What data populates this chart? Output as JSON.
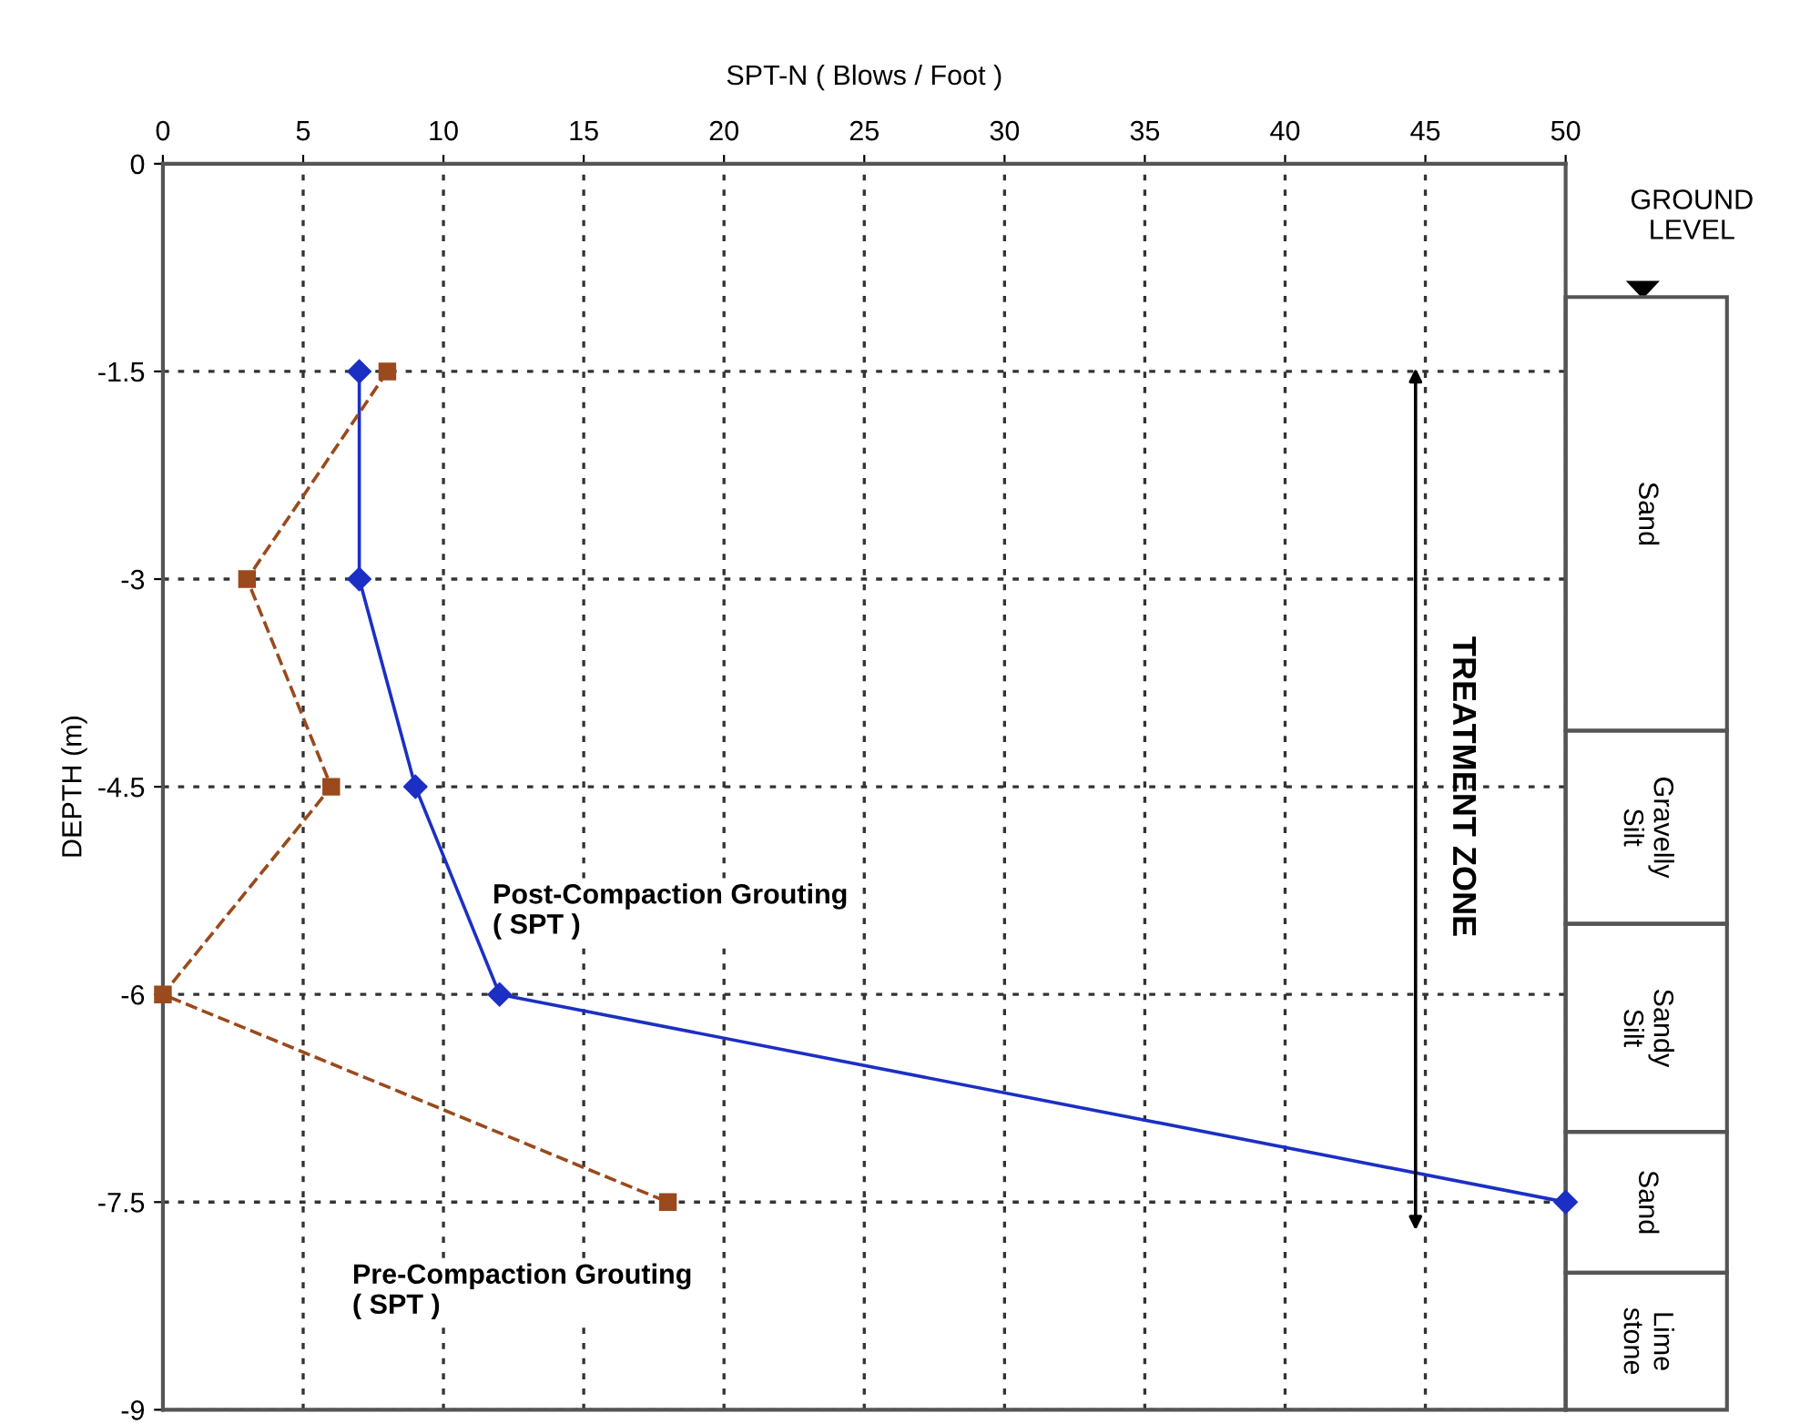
{
  "chart_data": {
    "type": "line",
    "xlabel": "SPT-N ( Blows / Foot )",
    "ylabel": "DEPTH (m)",
    "xlim": [
      0,
      50
    ],
    "xticks": [
      0,
      5,
      10,
      15,
      20,
      25,
      30,
      35,
      40,
      45,
      50
    ],
    "ylim": [
      -9,
      0
    ],
    "yticks": [
      0,
      -1.5,
      -3,
      -4.5,
      -6,
      -7.5,
      -9
    ],
    "grid": true,
    "series": [
      {
        "name": "Post-Compaction Grouting\n( SPT )",
        "color": "#1c2fc4",
        "marker": "diamond",
        "line_style": "solid",
        "x": [
          7,
          7,
          9,
          12,
          50
        ],
        "values": [
          -1.5,
          -3,
          -4.5,
          -6,
          -7.5
        ]
      },
      {
        "name": "Pre-Compaction Grouting\n( SPT )",
        "color": "#9a4a1c",
        "marker": "square",
        "line_style": "dashed",
        "x": [
          8,
          3,
          6,
          0,
          18
        ],
        "values": [
          -1.5,
          -3,
          -4.5,
          -6,
          -7.5
        ]
      }
    ],
    "annotations": [
      "TREATMENT ZONE",
      "GROUND\nLEVEL",
      "Sand",
      "Gravelly\nSilt",
      "Sandy\nSilt",
      "Sand",
      "Lime\nstone"
    ]
  }
}
